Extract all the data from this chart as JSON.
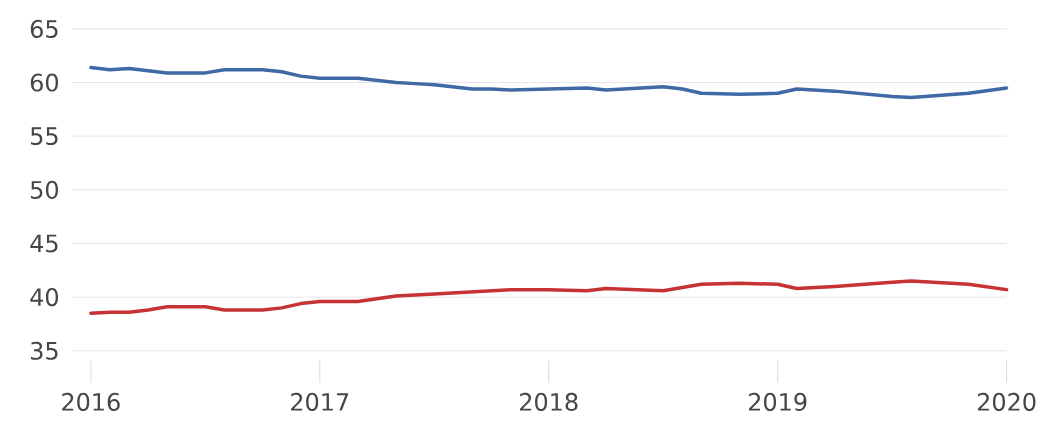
{
  "chart_data": {
    "type": "line",
    "xlim": [
      "2015-12",
      "2020-01"
    ],
    "xticks": [
      "2016",
      "2017",
      "2018",
      "2019",
      "2020"
    ],
    "ylim": [
      35,
      65
    ],
    "yticks": [
      35,
      40,
      45,
      50,
      55,
      60,
      65
    ],
    "grid": "y",
    "marker": "none",
    "line_style": "solid",
    "series": [
      {
        "color": "#3f6aa6",
        "x": [
          "2016-01",
          "2016-02",
          "2016-03",
          "2016-04",
          "2016-05",
          "2016-07",
          "2016-08",
          "2016-10",
          "2016-11",
          "2016-12",
          "2017-01",
          "2017-03",
          "2017-05",
          "2017-06",
          "2017-07",
          "2017-09",
          "2017-10",
          "2017-11",
          "2018-01",
          "2018-03",
          "2018-04",
          "2018-07",
          "2018-08",
          "2018-09",
          "2018-11",
          "2019-01",
          "2019-02",
          "2019-04",
          "2019-07",
          "2019-08",
          "2019-11",
          "2020-01"
        ],
        "values": [
          61.4,
          61.2,
          61.3,
          61.1,
          60.9,
          60.9,
          61.2,
          61.2,
          61.0,
          60.6,
          60.4,
          60.4,
          60.0,
          59.9,
          59.8,
          59.4,
          59.4,
          59.3,
          59.4,
          59.5,
          59.3,
          59.6,
          59.4,
          59.0,
          58.9,
          59.0,
          59.4,
          59.2,
          58.7,
          58.6,
          59.0,
          59.5
        ]
      },
      {
        "color": "#c73232",
        "x": [
          "2016-01",
          "2016-02",
          "2016-03",
          "2016-04",
          "2016-05",
          "2016-07",
          "2016-08",
          "2016-10",
          "2016-11",
          "2016-12",
          "2017-01",
          "2017-03",
          "2017-05",
          "2017-07",
          "2017-09",
          "2017-11",
          "2018-01",
          "2018-03",
          "2018-04",
          "2018-07",
          "2018-09",
          "2018-11",
          "2019-01",
          "2019-02",
          "2019-04",
          "2019-07",
          "2019-08",
          "2019-11",
          "2020-01"
        ],
        "values": [
          38.5,
          38.6,
          38.6,
          38.8,
          39.1,
          39.1,
          38.8,
          38.8,
          39.0,
          39.4,
          39.6,
          39.6,
          40.1,
          40.3,
          40.5,
          40.7,
          40.7,
          40.6,
          40.8,
          40.6,
          41.2,
          41.3,
          41.2,
          40.8,
          41.0,
          41.4,
          41.5,
          41.2,
          40.7
        ]
      }
    ]
  }
}
